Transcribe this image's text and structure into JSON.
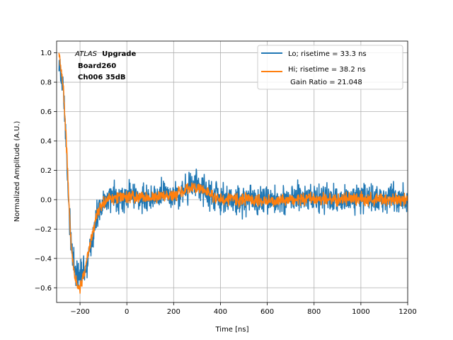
{
  "chart_data": {
    "type": "line",
    "title": "",
    "xlabel": "Time [ns]",
    "ylabel": "Normalized Amplitude (A.U.)",
    "xlim": [
      -300,
      1200
    ],
    "ylim": [
      -0.7,
      1.08
    ],
    "xticks": [
      -200,
      0,
      200,
      400,
      600,
      800,
      1000,
      1200
    ],
    "yticks": [
      -0.6,
      -0.4,
      -0.2,
      0.0,
      0.2,
      0.4,
      0.6,
      0.8,
      1.0
    ],
    "xtick_labels": [
      "−200",
      "0",
      "200",
      "400",
      "600",
      "800",
      "1000",
      "1200"
    ],
    "ytick_labels": [
      "−0.6",
      "−0.4",
      "−0.2",
      "0.0",
      "0.2",
      "0.4",
      "0.6",
      "0.8",
      "1.0"
    ],
    "grid": true,
    "legend_location": "top-right",
    "annotation": {
      "italic_part": "ATLAS",
      "bold_part": "Upgrade",
      "line2": "Board260",
      "line3": "Ch006 35dB"
    },
    "series": [
      {
        "name": "Lo; risetime = 33.3 ns",
        "color": "#1f77b4",
        "noise": 0.05,
        "x": [
          -290,
          -280,
          -270,
          -260,
          -250,
          -240,
          -230,
          -220,
          -210,
          -200,
          -190,
          -180,
          -170,
          -160,
          -150,
          -140,
          -130,
          -120,
          -110,
          -100,
          -80,
          -60,
          -40,
          -20,
          0,
          50,
          100,
          150,
          200,
          250,
          280,
          320,
          360,
          400,
          500,
          600,
          700,
          800,
          900,
          1000,
          1100,
          1200
        ],
        "y": [
          0.95,
          0.85,
          0.7,
          0.4,
          0.05,
          -0.25,
          -0.42,
          -0.5,
          -0.52,
          -0.52,
          -0.5,
          -0.48,
          -0.43,
          -0.36,
          -0.28,
          -0.2,
          -0.13,
          -0.08,
          -0.05,
          -0.03,
          0.0,
          0.02,
          0.02,
          0.02,
          0.02,
          0.02,
          0.02,
          0.03,
          0.03,
          0.06,
          0.1,
          0.08,
          0.04,
          0.0,
          -0.01,
          0.0,
          0.0,
          0.01,
          0.0,
          0.02,
          0.0,
          0.01
        ]
      },
      {
        "name": "Hi; risetime = 38.2 ns",
        "color": "#ff7f0e",
        "noise": 0.02,
        "x": [
          -290,
          -280,
          -270,
          -260,
          -250,
          -240,
          -230,
          -220,
          -210,
          -200,
          -190,
          -180,
          -170,
          -160,
          -150,
          -140,
          -130,
          -120,
          -110,
          -100,
          -80,
          -60,
          -40,
          -20,
          0,
          50,
          100,
          150,
          200,
          250,
          280,
          320,
          360,
          400,
          500,
          600,
          700,
          800,
          900,
          1000,
          1100,
          1200
        ],
        "y": [
          1.0,
          0.88,
          0.72,
          0.45,
          0.08,
          -0.25,
          -0.45,
          -0.55,
          -0.59,
          -0.59,
          -0.55,
          -0.48,
          -0.4,
          -0.32,
          -0.25,
          -0.18,
          -0.12,
          -0.07,
          -0.04,
          -0.02,
          0.0,
          0.01,
          0.02,
          0.02,
          0.02,
          0.02,
          0.01,
          0.02,
          0.02,
          0.06,
          0.09,
          0.07,
          0.03,
          0.0,
          0.0,
          -0.01,
          0.0,
          0.01,
          0.0,
          0.01,
          0.0,
          0.0
        ]
      }
    ],
    "legend_extra": " Gain Ratio = 21.048"
  }
}
